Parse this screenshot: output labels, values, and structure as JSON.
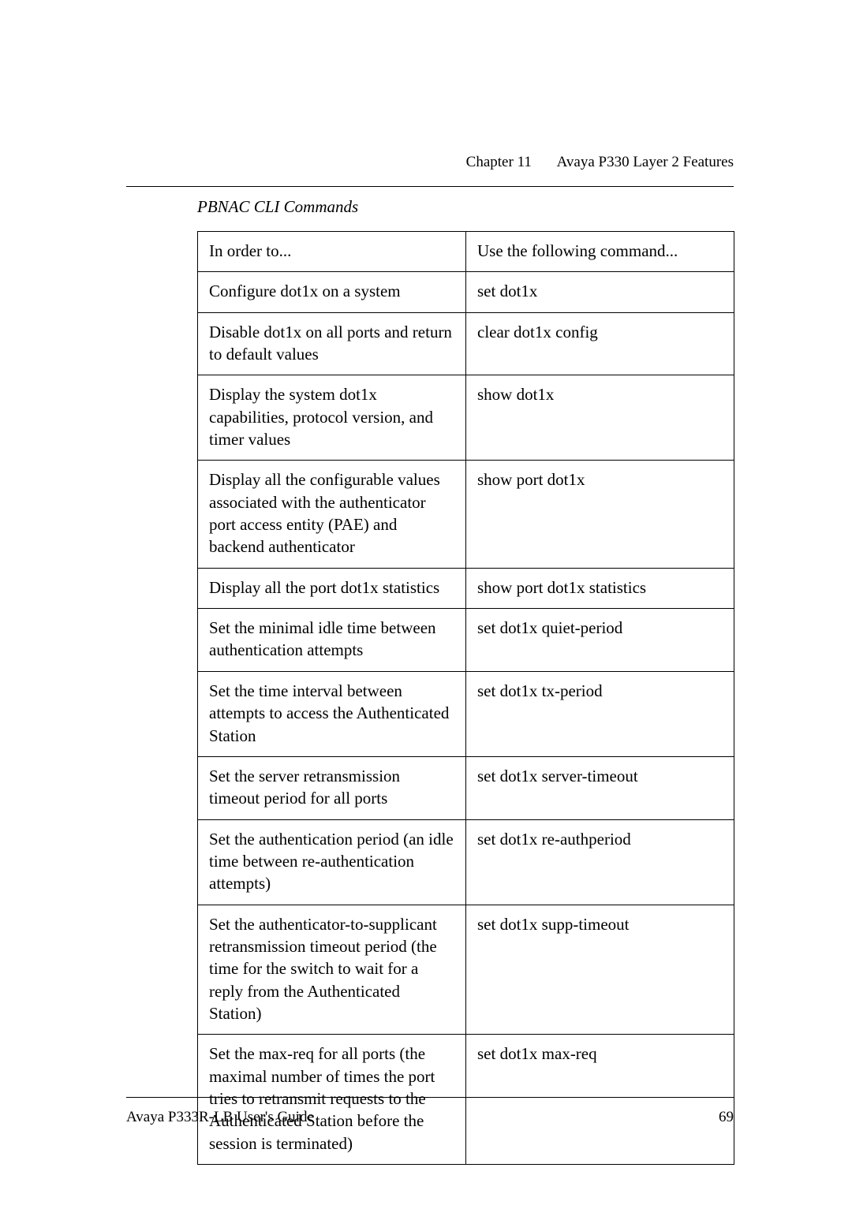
{
  "header": {
    "chapter": "Chapter 11",
    "title": "Avaya P330 Layer 2 Features"
  },
  "section_title": "PBNAC CLI Commands",
  "table": {
    "header": {
      "left": "In order to...",
      "right": "Use the following command..."
    },
    "rows": [
      {
        "left": "Configure dot1x on a system",
        "right": "set dot1x"
      },
      {
        "left": "Disable dot1x on all ports and return to default values",
        "right": "clear dot1x config"
      },
      {
        "left": "Display the system dot1x capabilities, protocol version, and timer values",
        "right": "show dot1x"
      },
      {
        "left": "Display all the configurable values associated with the authenticator port access entity (PAE) and backend authenticator",
        "right": "show port dot1x"
      },
      {
        "left": "Display all the  port dot1x statistics",
        "right": "show port dot1x statistics"
      },
      {
        "left": "Set the minimal idle time between authentication attempts",
        "right": "set dot1x quiet-period"
      },
      {
        "left": "Set the  time interval between attempts to access the Authenticated Station",
        "right": "set dot1x tx-period"
      },
      {
        "left": "Set the server retransmission timeout period for all ports",
        "right": "set dot1x server-timeout"
      },
      {
        "left": "Set the authentication period (an idle time between re-authentication attempts)",
        "right": "set dot1x re-authperiod"
      },
      {
        "left": "Set the authenticator-to-supplicant retransmission timeout period (the time for the switch to wait for a reply from the Authenticated Station)",
        "right": "set dot1x supp-timeout"
      },
      {
        "left": "Set the max-req for all ports (the maximal number of times the port tries to retransmit requests to the Authenticated Station before the session is terminated)",
        "right": "set dot1x max-req"
      }
    ]
  },
  "footer": {
    "guide": "Avaya P333R-LB User's Guide",
    "page": "69"
  }
}
